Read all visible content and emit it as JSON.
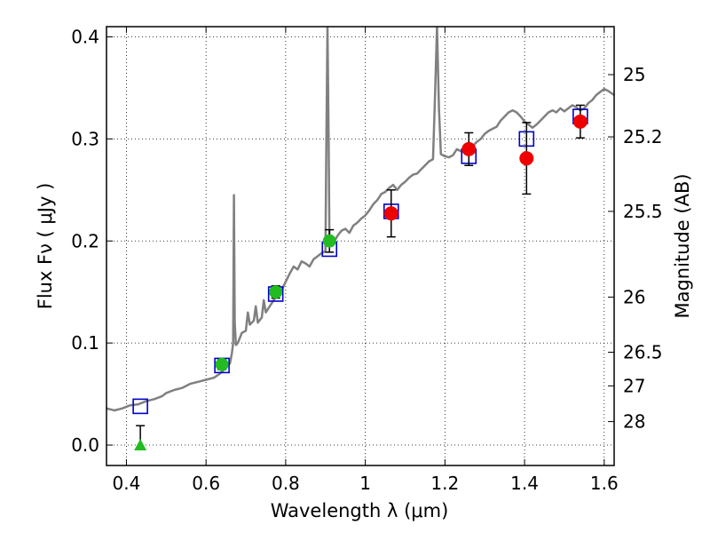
{
  "chart_data": {
    "type": "scatter",
    "xlabel": "Wavelength  λ (μm)",
    "ylabel": "Flux  Fν  ( μJy )",
    "y2label": "Magnitude (AB)",
    "xlim": [
      0.35,
      1.625
    ],
    "ylim": [
      -0.02,
      0.41
    ],
    "grid": true,
    "grid_style": "dotted",
    "x_ticks": [
      0.4,
      0.6,
      0.8,
      1.0,
      1.2,
      1.4,
      1.6
    ],
    "x_tick_labels": [
      "0.4",
      "0.6",
      "0.8",
      "1",
      "1.2",
      "1.4",
      "1.6"
    ],
    "y_ticks": [
      0.0,
      0.1,
      0.2,
      0.3,
      0.4
    ],
    "y_tick_labels": [
      "0.0",
      "0.1",
      "0.2",
      "0.3",
      "0.4"
    ],
    "right_axis_ticks": [
      {
        "label": "25",
        "flux": 0.363
      },
      {
        "label": "25.2",
        "flux": 0.302
      },
      {
        "label": "25.5",
        "flux": 0.229
      },
      {
        "label": "26",
        "flux": 0.145
      },
      {
        "label": "26.5",
        "flux": 0.091
      },
      {
        "label": "27",
        "flux": 0.058
      },
      {
        "label": "28",
        "flux": 0.023
      }
    ],
    "colors": {
      "spectrum": "#808080",
      "model": "#0000cc",
      "green": "#22bb22",
      "red": "#ee0000",
      "errorbar": "#000000"
    },
    "series": [
      {
        "kind": "line",
        "points": [
          [
            0.35,
            0.036
          ],
          [
            0.37,
            0.034
          ],
          [
            0.39,
            0.036
          ],
          [
            0.41,
            0.039
          ],
          [
            0.43,
            0.04
          ],
          [
            0.45,
            0.043
          ],
          [
            0.47,
            0.045
          ],
          [
            0.49,
            0.048
          ],
          [
            0.5,
            0.051
          ],
          [
            0.52,
            0.054
          ],
          [
            0.54,
            0.056
          ],
          [
            0.56,
            0.06
          ],
          [
            0.58,
            0.062
          ],
          [
            0.6,
            0.064
          ],
          [
            0.62,
            0.066
          ],
          [
            0.635,
            0.07
          ],
          [
            0.65,
            0.076
          ],
          [
            0.66,
            0.08
          ],
          [
            0.665,
            0.09
          ],
          [
            0.668,
            0.1
          ],
          [
            0.67,
            0.245
          ],
          [
            0.672,
            0.12
          ],
          [
            0.675,
            0.098
          ],
          [
            0.68,
            0.1
          ],
          [
            0.69,
            0.11
          ],
          [
            0.7,
            0.112
          ],
          [
            0.705,
            0.13
          ],
          [
            0.71,
            0.118
          ],
          [
            0.72,
            0.122
          ],
          [
            0.725,
            0.136
          ],
          [
            0.73,
            0.12
          ],
          [
            0.74,
            0.125
          ],
          [
            0.745,
            0.142
          ],
          [
            0.75,
            0.13
          ],
          [
            0.76,
            0.136
          ],
          [
            0.77,
            0.142
          ],
          [
            0.78,
            0.148
          ],
          [
            0.79,
            0.152
          ],
          [
            0.8,
            0.16
          ],
          [
            0.81,
            0.168
          ],
          [
            0.82,
            0.175
          ],
          [
            0.83,
            0.172
          ],
          [
            0.84,
            0.18
          ],
          [
            0.85,
            0.178
          ],
          [
            0.86,
            0.175
          ],
          [
            0.87,
            0.182
          ],
          [
            0.88,
            0.185
          ],
          [
            0.89,
            0.188
          ],
          [
            0.9,
            0.19
          ],
          [
            0.902,
            0.285
          ],
          [
            0.905,
            0.41
          ],
          [
            0.908,
            0.3
          ],
          [
            0.91,
            0.2
          ],
          [
            0.92,
            0.198
          ],
          [
            0.93,
            0.205
          ],
          [
            0.94,
            0.21
          ],
          [
            0.95,
            0.212
          ],
          [
            0.96,
            0.208
          ],
          [
            0.97,
            0.215
          ],
          [
            0.98,
            0.218
          ],
          [
            0.99,
            0.222
          ],
          [
            1.0,
            0.225
          ],
          [
            1.01,
            0.23
          ],
          [
            1.02,
            0.236
          ],
          [
            1.03,
            0.24
          ],
          [
            1.04,
            0.246
          ],
          [
            1.05,
            0.248
          ],
          [
            1.06,
            0.252
          ],
          [
            1.07,
            0.255
          ],
          [
            1.08,
            0.25
          ],
          [
            1.09,
            0.255
          ],
          [
            1.1,
            0.258
          ],
          [
            1.11,
            0.262
          ],
          [
            1.12,
            0.265
          ],
          [
            1.13,
            0.266
          ],
          [
            1.14,
            0.27
          ],
          [
            1.15,
            0.274
          ],
          [
            1.16,
            0.278
          ],
          [
            1.17,
            0.28
          ],
          [
            1.175,
            0.34
          ],
          [
            1.18,
            0.41
          ],
          [
            1.185,
            0.33
          ],
          [
            1.19,
            0.285
          ],
          [
            1.2,
            0.283
          ],
          [
            1.21,
            0.282
          ],
          [
            1.22,
            0.284
          ],
          [
            1.23,
            0.29
          ],
          [
            1.24,
            0.288
          ],
          [
            1.25,
            0.292
          ],
          [
            1.26,
            0.295
          ],
          [
            1.27,
            0.293
          ],
          [
            1.28,
            0.297
          ],
          [
            1.29,
            0.3
          ],
          [
            1.3,
            0.305
          ],
          [
            1.31,
            0.308
          ],
          [
            1.32,
            0.31
          ],
          [
            1.33,
            0.312
          ],
          [
            1.34,
            0.318
          ],
          [
            1.35,
            0.322
          ],
          [
            1.36,
            0.326
          ],
          [
            1.37,
            0.328
          ],
          [
            1.38,
            0.326
          ],
          [
            1.39,
            0.322
          ],
          [
            1.4,
            0.317
          ],
          [
            1.41,
            0.314
          ],
          [
            1.42,
            0.311
          ],
          [
            1.43,
            0.314
          ],
          [
            1.44,
            0.318
          ],
          [
            1.45,
            0.322
          ],
          [
            1.46,
            0.326
          ],
          [
            1.47,
            0.328
          ],
          [
            1.48,
            0.326
          ],
          [
            1.49,
            0.33
          ],
          [
            1.5,
            0.327
          ],
          [
            1.51,
            0.33
          ],
          [
            1.52,
            0.333
          ],
          [
            1.53,
            0.331
          ],
          [
            1.54,
            0.328
          ],
          [
            1.55,
            0.33
          ],
          [
            1.56,
            0.335
          ],
          [
            1.57,
            0.338
          ],
          [
            1.58,
            0.343
          ],
          [
            1.59,
            0.346
          ],
          [
            1.6,
            0.349
          ],
          [
            1.61,
            0.347
          ],
          [
            1.625,
            0.343
          ]
        ]
      },
      {
        "kind": "model_squares",
        "points": [
          [
            0.435,
            0.038
          ],
          [
            0.64,
            0.078
          ],
          [
            0.775,
            0.148
          ],
          [
            0.91,
            0.192
          ],
          [
            1.065,
            0.229
          ],
          [
            1.26,
            0.283
          ],
          [
            1.405,
            0.3
          ],
          [
            1.54,
            0.322
          ]
        ]
      },
      {
        "kind": "green_circles",
        "points": [
          {
            "x": 0.64,
            "y": 0.079,
            "err": 0.005
          },
          {
            "x": 0.775,
            "y": 0.15,
            "err": 0.006
          },
          {
            "x": 0.91,
            "y": 0.2,
            "err": 0.011
          }
        ]
      },
      {
        "kind": "green_triangle",
        "points": [
          {
            "x": 0.435,
            "y": 0.0,
            "err": 0.019
          }
        ]
      },
      {
        "kind": "red_circles",
        "points": [
          {
            "x": 1.065,
            "y": 0.227,
            "err": 0.023
          },
          {
            "x": 1.26,
            "y": 0.29,
            "err": 0.016
          },
          {
            "x": 1.405,
            "y": 0.281,
            "err": 0.035
          },
          {
            "x": 1.54,
            "y": 0.317,
            "err": 0.016
          }
        ]
      }
    ]
  }
}
